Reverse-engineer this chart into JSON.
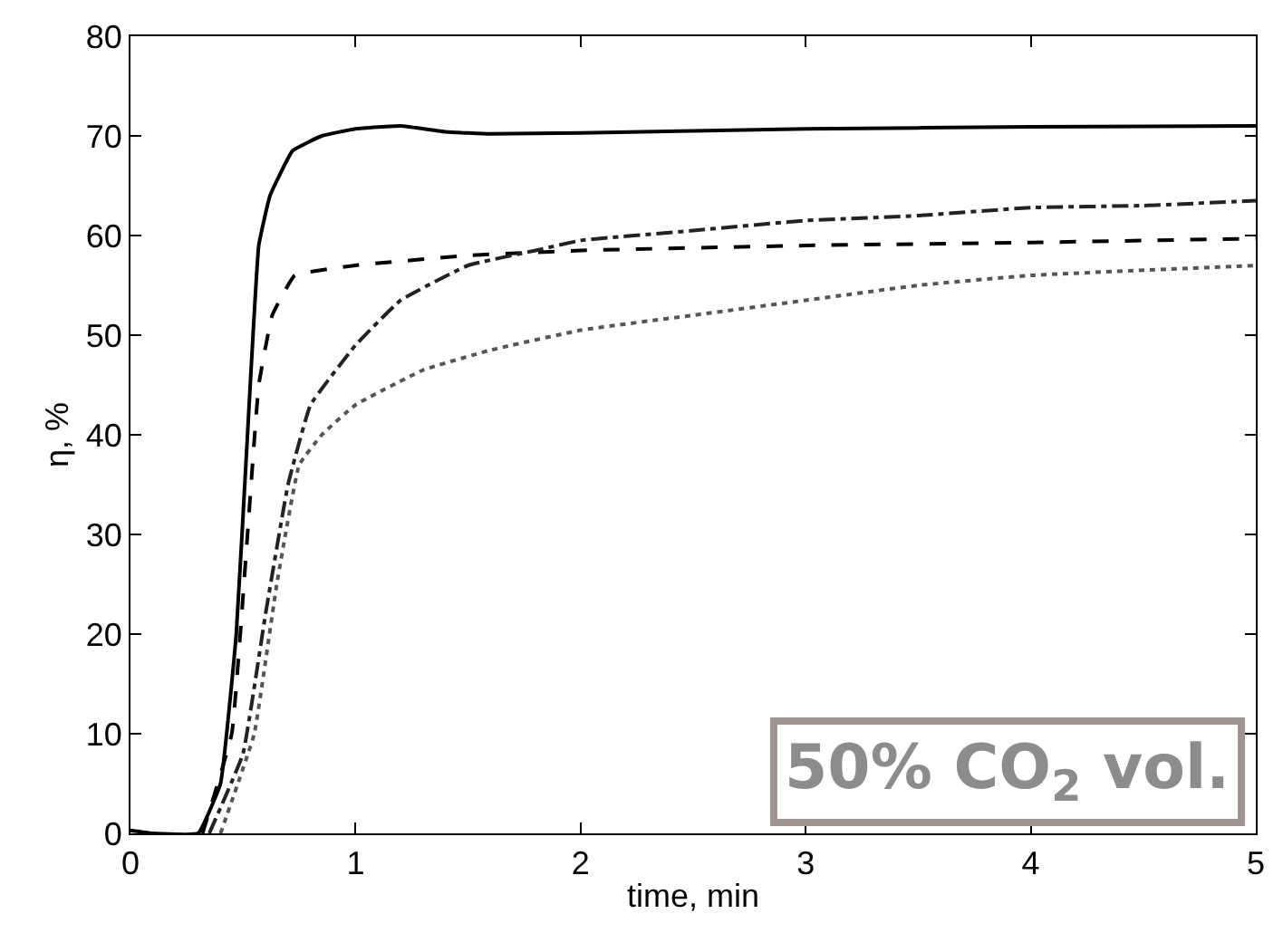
{
  "chart_data": {
    "type": "line",
    "xlabel": "time, min",
    "ylabel": "η, %",
    "xlim": [
      0,
      5
    ],
    "xticks": [
      0,
      1,
      2,
      3,
      4,
      5
    ],
    "ylim": [
      0,
      80
    ],
    "yticks": [
      0,
      10,
      20,
      30,
      40,
      50,
      60,
      70,
      80
    ],
    "marker": "none",
    "annotations": [
      "50% CO$_{2}$ vol."
    ],
    "series": [
      {
        "color": "#000000",
        "line_style": "solid",
        "x": [
          0,
          0.1,
          0.3,
          0.4,
          0.47,
          0.52,
          0.57,
          0.62,
          0.72,
          0.85,
          1,
          1.2,
          1.4,
          1.6,
          2,
          3,
          4,
          5
        ],
        "values": [
          0.3,
          0,
          0,
          5,
          20,
          40,
          59,
          64,
          68.5,
          70,
          70.7,
          71,
          70.4,
          70.2,
          70.3,
          70.7,
          70.9,
          71
        ]
      },
      {
        "color": "#000000",
        "line_style": "dashed",
        "x": [
          0.32,
          0.45,
          0.52,
          0.57,
          0.63,
          0.73,
          1,
          1.5,
          2,
          3,
          4,
          5
        ],
        "values": [
          0,
          10,
          30,
          45,
          52,
          56,
          57,
          58,
          58.5,
          59,
          59.3,
          59.7
        ]
      },
      {
        "color": "#222222",
        "line_style": "dashdot",
        "x": [
          0.35,
          0.5,
          0.6,
          0.7,
          0.8,
          1,
          1.2,
          1.5,
          1.8,
          2,
          2.5,
          3,
          3.5,
          4,
          4.5,
          5
        ],
        "values": [
          0,
          8,
          22,
          35,
          43,
          49,
          53.5,
          57,
          58.5,
          59.5,
          60.5,
          61.5,
          62,
          62.8,
          63,
          63.5
        ]
      },
      {
        "color": "#555555",
        "line_style": "dotted",
        "x": [
          0.4,
          0.55,
          0.65,
          0.75,
          0.85,
          1,
          1.3,
          1.6,
          2,
          2.5,
          3,
          3.5,
          4,
          5
        ],
        "values": [
          0,
          10,
          25,
          37,
          40,
          43,
          46.5,
          48.5,
          50.5,
          52,
          53.5,
          55,
          56,
          57
        ]
      }
    ]
  }
}
